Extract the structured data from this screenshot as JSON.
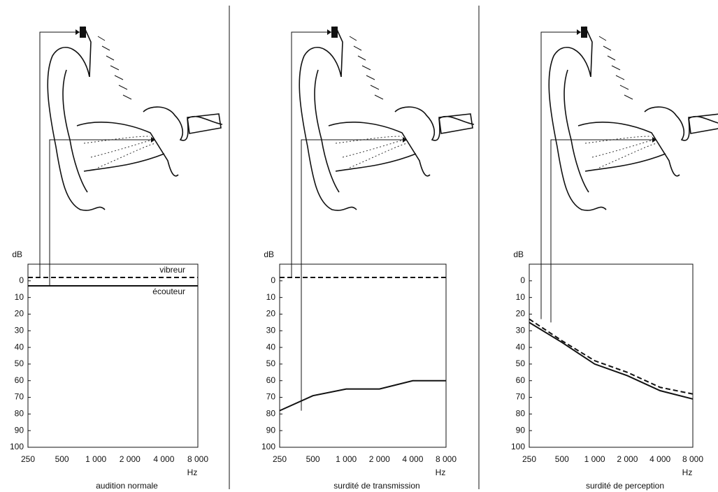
{
  "chart_data": [
    {
      "type": "line",
      "title": "audition normale",
      "y_label": "dB",
      "x_label": "Hz",
      "categories": [
        "250",
        "500",
        "1 000",
        "2 000",
        "4 000",
        "8 000"
      ],
      "ylim": [
        -10,
        100
      ],
      "yticks": [
        0,
        10,
        20,
        30,
        40,
        50,
        60,
        70,
        80,
        90,
        100
      ],
      "y_inverted": true,
      "series": [
        {
          "name": "vibreur",
          "color": "#111111",
          "dash": true,
          "values": [
            -2,
            -2,
            -2,
            -2,
            -2,
            -2
          ]
        },
        {
          "name": "écouteur",
          "color": "#111111",
          "dash": false,
          "values": [
            3,
            3,
            3,
            3,
            3,
            3
          ]
        }
      ]
    },
    {
      "type": "line",
      "title": "surdité de transmission",
      "y_label": "dB",
      "x_label": "Hz",
      "categories": [
        "250",
        "500",
        "1 000",
        "2 000",
        "4 000",
        "8 000"
      ],
      "ylim": [
        -10,
        100
      ],
      "yticks": [
        0,
        10,
        20,
        30,
        40,
        50,
        60,
        70,
        80,
        90,
        100
      ],
      "y_inverted": true,
      "series": [
        {
          "color": "#111111",
          "dash": true,
          "values": [
            -2,
            -2,
            -2,
            -2,
            -2,
            -2
          ]
        },
        {
          "color": "#111111",
          "dash": false,
          "values": [
            78,
            69,
            65,
            65,
            60,
            60
          ]
        }
      ]
    },
    {
      "type": "line",
      "title": "surdité de perception",
      "y_label": "dB",
      "x_label": "Hz",
      "categories": [
        "250",
        "500",
        "1 000",
        "2 000",
        "4 000",
        "8 000"
      ],
      "ylim": [
        -10,
        100
      ],
      "yticks": [
        0,
        10,
        20,
        30,
        40,
        50,
        60,
        70,
        80,
        90,
        100
      ],
      "y_inverted": true,
      "series": [
        {
          "color": "#111111",
          "dash": true,
          "values": [
            23,
            36,
            48,
            55,
            64,
            68
          ]
        },
        {
          "color": "#111111",
          "dash": false,
          "values": [
            25,
            37,
            50,
            57,
            66,
            71
          ]
        }
      ]
    }
  ]
}
